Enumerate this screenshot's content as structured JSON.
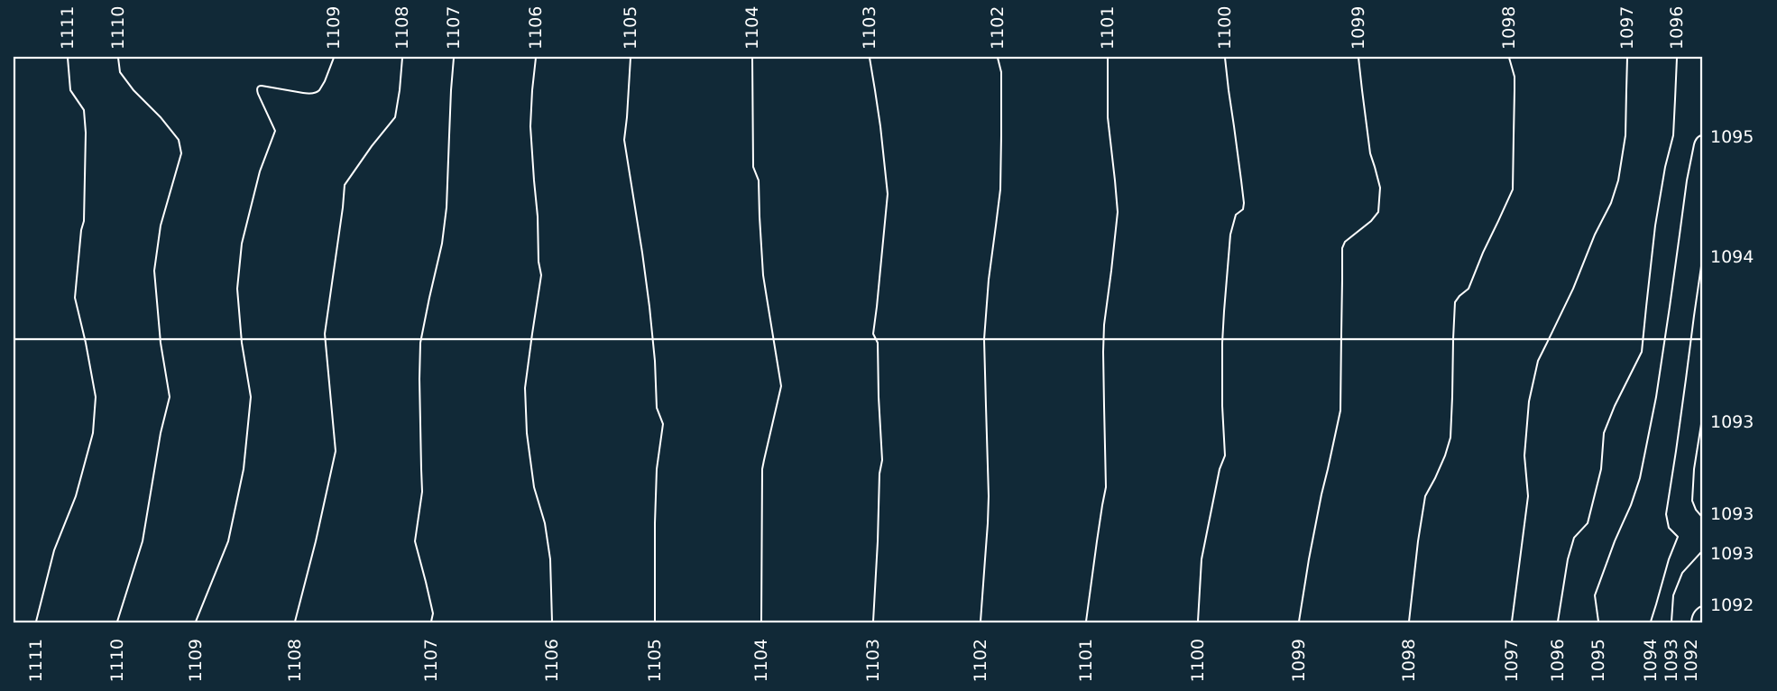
{
  "figure": {
    "background": "#112937",
    "line_color": "#ffffff",
    "top_labels": [
      "1111",
      "1110",
      "1109",
      "1108",
      "1107",
      "1106",
      "1105",
      "1104",
      "1103",
      "1102",
      "1101",
      "1100",
      "1099",
      "1098",
      "1097",
      "1096"
    ],
    "bottom_labels": [
      "1111",
      "1110",
      "1109",
      "1108",
      "1107",
      "1106",
      "1105",
      "1104",
      "1103",
      "1102",
      "1101",
      "1100",
      "1099",
      "1098",
      "1097",
      "1096",
      "1095",
      "1094",
      "1093",
      "1092"
    ],
    "right_labels": [
      "1095",
      "1094",
      "1093",
      "1093",
      "1093",
      "1092"
    ]
  }
}
